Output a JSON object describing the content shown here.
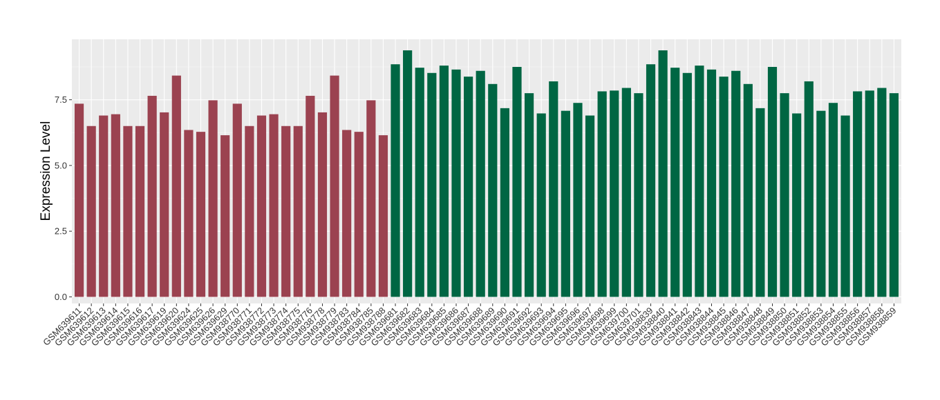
{
  "chart_data": {
    "type": "bar",
    "title": "",
    "xlabel": "",
    "ylabel": "Expression Level",
    "ylim": [
      -0.25,
      9.8
    ],
    "yticks": [
      0.0,
      2.5,
      5.0,
      7.5
    ],
    "ytick_labels": [
      "0.0",
      "2.5",
      "5.0",
      "7.5"
    ],
    "grid": true,
    "legend": "none",
    "colors": {
      "group1": "#9b4250",
      "group2": "#006643",
      "panel": "#ebebeb",
      "grid_major": "#ffffff",
      "text": "#333333"
    },
    "bars": [
      {
        "label": "GSM639611",
        "value": 7.35,
        "group": "group1"
      },
      {
        "label": "GSM639612",
        "value": 6.5,
        "group": "group1"
      },
      {
        "label": "GSM639613",
        "value": 6.9,
        "group": "group1"
      },
      {
        "label": "GSM639614",
        "value": 6.95,
        "group": "group1"
      },
      {
        "label": "GSM639615",
        "value": 6.5,
        "group": "group1"
      },
      {
        "label": "GSM639616",
        "value": 6.5,
        "group": "group1"
      },
      {
        "label": "GSM639617",
        "value": 7.65,
        "group": "group1"
      },
      {
        "label": "GSM639619",
        "value": 7.02,
        "group": "group1"
      },
      {
        "label": "GSM639620",
        "value": 8.42,
        "group": "group1"
      },
      {
        "label": "GSM639624",
        "value": 6.35,
        "group": "group1"
      },
      {
        "label": "GSM639625",
        "value": 6.28,
        "group": "group1"
      },
      {
        "label": "GSM639626",
        "value": 7.48,
        "group": "group1"
      },
      {
        "label": "GSM639629",
        "value": 6.15,
        "group": "group1"
      },
      {
        "label": "GSM938770",
        "value": 7.35,
        "group": "group1"
      },
      {
        "label": "GSM938771",
        "value": 6.5,
        "group": "group1"
      },
      {
        "label": "GSM938772",
        "value": 6.9,
        "group": "group1"
      },
      {
        "label": "GSM938773",
        "value": 6.95,
        "group": "group1"
      },
      {
        "label": "GSM938774",
        "value": 6.5,
        "group": "group1"
      },
      {
        "label": "GSM938775",
        "value": 6.5,
        "group": "group1"
      },
      {
        "label": "GSM938776",
        "value": 7.65,
        "group": "group1"
      },
      {
        "label": "GSM938778",
        "value": 7.02,
        "group": "group1"
      },
      {
        "label": "GSM938779",
        "value": 8.42,
        "group": "group1"
      },
      {
        "label": "GSM938783",
        "value": 6.35,
        "group": "group1"
      },
      {
        "label": "GSM938784",
        "value": 6.28,
        "group": "group1"
      },
      {
        "label": "GSM938785",
        "value": 7.48,
        "group": "group1"
      },
      {
        "label": "GSM938788",
        "value": 6.15,
        "group": "group1"
      },
      {
        "label": "GSM639681",
        "value": 8.85,
        "group": "group2"
      },
      {
        "label": "GSM639682",
        "value": 9.38,
        "group": "group2"
      },
      {
        "label": "GSM639683",
        "value": 8.72,
        "group": "group2"
      },
      {
        "label": "GSM639684",
        "value": 8.52,
        "group": "group2"
      },
      {
        "label": "GSM639685",
        "value": 8.8,
        "group": "group2"
      },
      {
        "label": "GSM639686",
        "value": 8.65,
        "group": "group2"
      },
      {
        "label": "GSM639687",
        "value": 8.38,
        "group": "group2"
      },
      {
        "label": "GSM639688",
        "value": 8.6,
        "group": "group2"
      },
      {
        "label": "GSM639689",
        "value": 8.1,
        "group": "group2"
      },
      {
        "label": "GSM639690",
        "value": 7.18,
        "group": "group2"
      },
      {
        "label": "GSM639691",
        "value": 8.75,
        "group": "group2"
      },
      {
        "label": "GSM639692",
        "value": 7.75,
        "group": "group2"
      },
      {
        "label": "GSM639693",
        "value": 6.98,
        "group": "group2"
      },
      {
        "label": "GSM639694",
        "value": 8.2,
        "group": "group2"
      },
      {
        "label": "GSM639695",
        "value": 7.08,
        "group": "group2"
      },
      {
        "label": "GSM639696",
        "value": 7.38,
        "group": "group2"
      },
      {
        "label": "GSM639697",
        "value": 6.9,
        "group": "group2"
      },
      {
        "label": "GSM639698",
        "value": 7.82,
        "group": "group2"
      },
      {
        "label": "GSM639699",
        "value": 7.85,
        "group": "group2"
      },
      {
        "label": "GSM639700",
        "value": 7.95,
        "group": "group2"
      },
      {
        "label": "GSM639701",
        "value": 7.75,
        "group": "group2"
      },
      {
        "label": "GSM938839",
        "value": 8.85,
        "group": "group2"
      },
      {
        "label": "GSM938840",
        "value": 9.38,
        "group": "group2"
      },
      {
        "label": "GSM938841",
        "value": 8.72,
        "group": "group2"
      },
      {
        "label": "GSM938842",
        "value": 8.52,
        "group": "group2"
      },
      {
        "label": "GSM938843",
        "value": 8.8,
        "group": "group2"
      },
      {
        "label": "GSM938844",
        "value": 8.65,
        "group": "group2"
      },
      {
        "label": "GSM938845",
        "value": 8.38,
        "group": "group2"
      },
      {
        "label": "GSM938846",
        "value": 8.6,
        "group": "group2"
      },
      {
        "label": "GSM938847",
        "value": 8.1,
        "group": "group2"
      },
      {
        "label": "GSM938848",
        "value": 7.18,
        "group": "group2"
      },
      {
        "label": "GSM938849",
        "value": 8.75,
        "group": "group2"
      },
      {
        "label": "GSM938850",
        "value": 7.75,
        "group": "group2"
      },
      {
        "label": "GSM938851",
        "value": 6.98,
        "group": "group2"
      },
      {
        "label": "GSM938852",
        "value": 8.2,
        "group": "group2"
      },
      {
        "label": "GSM938853",
        "value": 7.08,
        "group": "group2"
      },
      {
        "label": "GSM938854",
        "value": 7.38,
        "group": "group2"
      },
      {
        "label": "GSM938855",
        "value": 6.9,
        "group": "group2"
      },
      {
        "label": "GSM938856",
        "value": 7.82,
        "group": "group2"
      },
      {
        "label": "GSM938857",
        "value": 7.85,
        "group": "group2"
      },
      {
        "label": "GSM938858",
        "value": 7.95,
        "group": "group2"
      },
      {
        "label": "GSM938859",
        "value": 7.75,
        "group": "group2"
      }
    ]
  }
}
